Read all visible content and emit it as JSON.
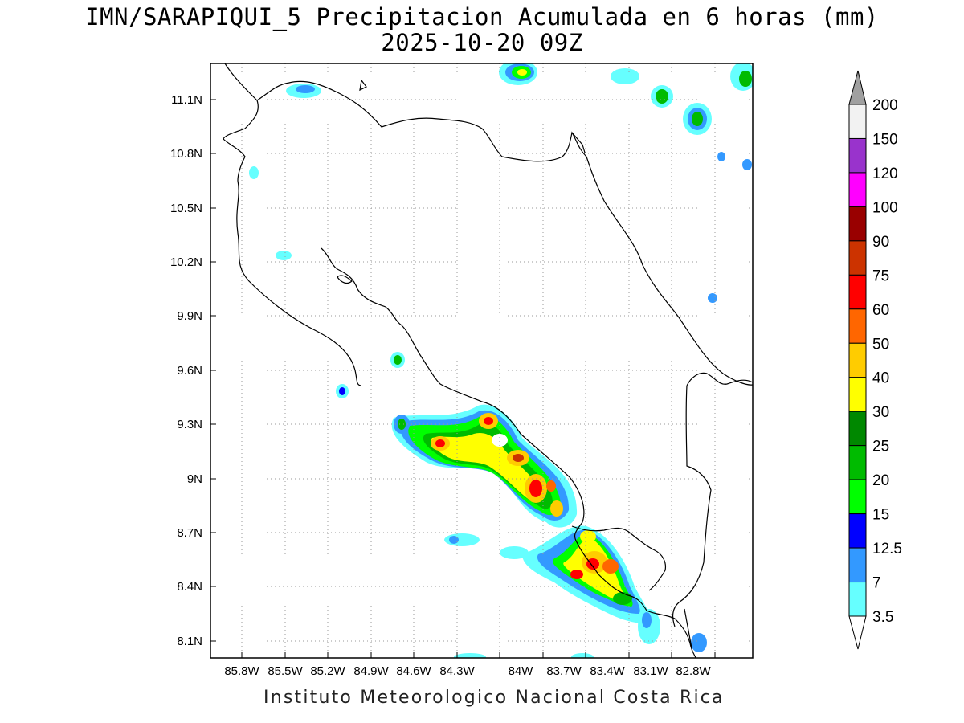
{
  "title": {
    "line1": "IMN/SARAPIQUI_5 Precipitacion Acumulada en 6 horas (mm)",
    "line2": "2025-10-20 09Z"
  },
  "map": {
    "lon_labels": [
      "85.8W",
      "85.5W",
      "85.2W",
      "84.9W",
      "84.6W",
      "84.3W",
      "84W",
      "83.7W",
      "83.4W",
      "83.1W",
      "82.8W"
    ],
    "lat_labels": [
      "11.1N",
      "10.8N",
      "10.5N",
      "10.2N",
      "9.9N",
      "9.6N",
      "9.3N",
      "9N",
      "8.7N",
      "8.4N",
      "8.1N"
    ]
  },
  "colorbar": {
    "labels": [
      "200",
      "150",
      "120",
      "100",
      "90",
      "75",
      "60",
      "50",
      "40",
      "30",
      "25",
      "20",
      "15",
      "12.5",
      "7",
      "3.5"
    ],
    "colors": [
      "#f2f2f2",
      "#9933cc",
      "#ff00ff",
      "#990000",
      "#cc3300",
      "#ff0000",
      "#ff6600",
      "#ffcc00",
      "#ffff00",
      "#008800",
      "#00bb00",
      "#00ff00",
      "#0000ff",
      "#3399ff",
      "#66ffff"
    ],
    "over_color": "#a0a0a0",
    "under_color": "#ffffff"
  },
  "footer": "Instituto Meteorologico Nacional Costa Rica"
}
